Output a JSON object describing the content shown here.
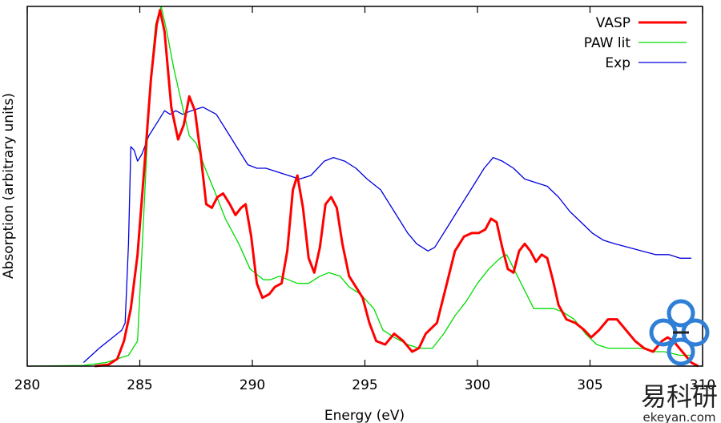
{
  "chart_data": {
    "type": "line",
    "title": "",
    "xlabel": "Energy (eV)",
    "ylabel": "Absorption (arbitrary units)",
    "xlim": [
      280,
      310
    ],
    "ylim": [
      0,
      1.0
    ],
    "x_ticks": [
      280,
      285,
      290,
      295,
      300,
      305,
      310
    ],
    "y_ticks_shown": false,
    "grid": false,
    "legend_position": "top-right",
    "series": [
      {
        "name": "VASP",
        "color": "#ff0000",
        "width": "thick",
        "points": [
          [
            283.0,
            0.0
          ],
          [
            283.6,
            0.004
          ],
          [
            284.0,
            0.02
          ],
          [
            284.3,
            0.07
          ],
          [
            284.6,
            0.16
          ],
          [
            284.9,
            0.31
          ],
          [
            285.2,
            0.55
          ],
          [
            285.5,
            0.8
          ],
          [
            285.75,
            0.95
          ],
          [
            285.9,
            0.99
          ],
          [
            286.1,
            0.93
          ],
          [
            286.4,
            0.72
          ],
          [
            286.7,
            0.63
          ],
          [
            286.95,
            0.67
          ],
          [
            287.2,
            0.75
          ],
          [
            287.45,
            0.71
          ],
          [
            287.7,
            0.59
          ],
          [
            287.95,
            0.45
          ],
          [
            288.2,
            0.44
          ],
          [
            288.45,
            0.47
          ],
          [
            288.7,
            0.48
          ],
          [
            289.0,
            0.45
          ],
          [
            289.25,
            0.42
          ],
          [
            289.5,
            0.44
          ],
          [
            289.7,
            0.45
          ],
          [
            289.95,
            0.36
          ],
          [
            290.2,
            0.23
          ],
          [
            290.45,
            0.19
          ],
          [
            290.75,
            0.2
          ],
          [
            291.0,
            0.22
          ],
          [
            291.3,
            0.23
          ],
          [
            291.55,
            0.32
          ],
          [
            291.8,
            0.49
          ],
          [
            292.0,
            0.53
          ],
          [
            292.25,
            0.44
          ],
          [
            292.5,
            0.3
          ],
          [
            292.75,
            0.26
          ],
          [
            293.0,
            0.33
          ],
          [
            293.25,
            0.45
          ],
          [
            293.5,
            0.47
          ],
          [
            293.75,
            0.44
          ],
          [
            294.0,
            0.34
          ],
          [
            294.3,
            0.25
          ],
          [
            294.6,
            0.22
          ],
          [
            294.9,
            0.19
          ],
          [
            295.2,
            0.12
          ],
          [
            295.5,
            0.07
          ],
          [
            295.9,
            0.06
          ],
          [
            296.3,
            0.09
          ],
          [
            296.7,
            0.07
          ],
          [
            297.1,
            0.04
          ],
          [
            297.4,
            0.05
          ],
          [
            297.7,
            0.09
          ],
          [
            298.2,
            0.12
          ],
          [
            298.6,
            0.22
          ],
          [
            299.0,
            0.32
          ],
          [
            299.4,
            0.36
          ],
          [
            299.75,
            0.37
          ],
          [
            300.05,
            0.37
          ],
          [
            300.35,
            0.38
          ],
          [
            300.6,
            0.41
          ],
          [
            300.85,
            0.4
          ],
          [
            301.1,
            0.33
          ],
          [
            301.35,
            0.27
          ],
          [
            301.6,
            0.26
          ],
          [
            301.85,
            0.32
          ],
          [
            302.1,
            0.34
          ],
          [
            302.35,
            0.32
          ],
          [
            302.6,
            0.29
          ],
          [
            302.85,
            0.31
          ],
          [
            303.1,
            0.3
          ],
          [
            303.35,
            0.24
          ],
          [
            303.6,
            0.17
          ],
          [
            303.95,
            0.13
          ],
          [
            304.35,
            0.12
          ],
          [
            304.75,
            0.1
          ],
          [
            305.05,
            0.08
          ],
          [
            305.4,
            0.1
          ],
          [
            305.8,
            0.13
          ],
          [
            306.2,
            0.13
          ],
          [
            306.6,
            0.1
          ],
          [
            307.0,
            0.07
          ],
          [
            307.4,
            0.05
          ],
          [
            307.8,
            0.04
          ],
          [
            308.2,
            0.07
          ],
          [
            308.45,
            0.08
          ],
          [
            308.7,
            0.07
          ],
          [
            309.1,
            0.04
          ],
          [
            309.5,
            0.01
          ],
          [
            309.8,
            0.0
          ]
        ]
      },
      {
        "name": "PAW lit",
        "color": "#00dd00",
        "width": "thin",
        "points": [
          [
            280.0,
            0.0
          ],
          [
            282.5,
            0.002
          ],
          [
            283.5,
            0.01
          ],
          [
            284.5,
            0.03
          ],
          [
            284.9,
            0.07
          ],
          [
            285.2,
            0.45
          ],
          [
            285.45,
            0.78
          ],
          [
            285.7,
            0.95
          ],
          [
            285.95,
            1.0
          ],
          [
            286.2,
            0.93
          ],
          [
            286.5,
            0.83
          ],
          [
            286.9,
            0.72
          ],
          [
            287.2,
            0.64
          ],
          [
            287.5,
            0.62
          ],
          [
            287.9,
            0.55
          ],
          [
            288.3,
            0.49
          ],
          [
            288.8,
            0.41
          ],
          [
            289.4,
            0.34
          ],
          [
            289.9,
            0.27
          ],
          [
            290.5,
            0.24
          ],
          [
            290.8,
            0.24
          ],
          [
            291.2,
            0.25
          ],
          [
            291.6,
            0.24
          ],
          [
            292.0,
            0.23
          ],
          [
            292.5,
            0.23
          ],
          [
            293.0,
            0.25
          ],
          [
            293.4,
            0.26
          ],
          [
            293.9,
            0.25
          ],
          [
            294.3,
            0.22
          ],
          [
            294.8,
            0.2
          ],
          [
            295.4,
            0.16
          ],
          [
            295.8,
            0.1
          ],
          [
            296.3,
            0.08
          ],
          [
            296.9,
            0.06
          ],
          [
            297.4,
            0.05
          ],
          [
            298.0,
            0.05
          ],
          [
            298.5,
            0.09
          ],
          [
            299.0,
            0.14
          ],
          [
            299.5,
            0.18
          ],
          [
            300.0,
            0.23
          ],
          [
            300.5,
            0.27
          ],
          [
            301.0,
            0.3
          ],
          [
            301.3,
            0.31
          ],
          [
            301.7,
            0.26
          ],
          [
            302.1,
            0.21
          ],
          [
            302.5,
            0.16
          ],
          [
            303.0,
            0.16
          ],
          [
            303.4,
            0.16
          ],
          [
            303.8,
            0.15
          ],
          [
            304.3,
            0.13
          ],
          [
            304.8,
            0.09
          ],
          [
            305.3,
            0.06
          ],
          [
            305.8,
            0.05
          ],
          [
            306.3,
            0.05
          ],
          [
            306.8,
            0.05
          ],
          [
            307.3,
            0.05
          ],
          [
            307.8,
            0.04
          ],
          [
            308.3,
            0.04
          ],
          [
            309.0,
            0.03
          ],
          [
            309.5,
            0.03
          ]
        ]
      },
      {
        "name": "Exp",
        "color": "#0000dd",
        "width": "thin",
        "points": [
          [
            282.5,
            0.01
          ],
          [
            283.2,
            0.05
          ],
          [
            283.8,
            0.08
          ],
          [
            284.2,
            0.1
          ],
          [
            284.35,
            0.12
          ],
          [
            284.5,
            0.34
          ],
          [
            284.6,
            0.61
          ],
          [
            284.75,
            0.6
          ],
          [
            284.9,
            0.57
          ],
          [
            285.1,
            0.59
          ],
          [
            285.4,
            0.64
          ],
          [
            285.8,
            0.68
          ],
          [
            286.1,
            0.71
          ],
          [
            286.35,
            0.7
          ],
          [
            286.6,
            0.71
          ],
          [
            286.9,
            0.7
          ],
          [
            287.3,
            0.71
          ],
          [
            287.8,
            0.72
          ],
          [
            288.4,
            0.7
          ],
          [
            288.9,
            0.65
          ],
          [
            289.4,
            0.6
          ],
          [
            289.8,
            0.56
          ],
          [
            290.2,
            0.55
          ],
          [
            290.6,
            0.55
          ],
          [
            291.1,
            0.54
          ],
          [
            291.6,
            0.53
          ],
          [
            292.1,
            0.52
          ],
          [
            292.6,
            0.53
          ],
          [
            293.2,
            0.57
          ],
          [
            293.6,
            0.58
          ],
          [
            294.1,
            0.57
          ],
          [
            294.6,
            0.55
          ],
          [
            295.1,
            0.52
          ],
          [
            295.7,
            0.49
          ],
          [
            296.3,
            0.43
          ],
          [
            296.9,
            0.37
          ],
          [
            297.3,
            0.34
          ],
          [
            297.8,
            0.32
          ],
          [
            298.1,
            0.33
          ],
          [
            298.6,
            0.38
          ],
          [
            299.2,
            0.44
          ],
          [
            299.8,
            0.5
          ],
          [
            300.3,
            0.55
          ],
          [
            300.7,
            0.58
          ],
          [
            301.1,
            0.57
          ],
          [
            301.6,
            0.55
          ],
          [
            302.1,
            0.52
          ],
          [
            302.6,
            0.51
          ],
          [
            303.1,
            0.5
          ],
          [
            303.6,
            0.47
          ],
          [
            304.1,
            0.43
          ],
          [
            304.6,
            0.4
          ],
          [
            305.1,
            0.37
          ],
          [
            305.6,
            0.35
          ],
          [
            306.1,
            0.34
          ],
          [
            306.7,
            0.33
          ],
          [
            307.3,
            0.32
          ],
          [
            307.9,
            0.31
          ],
          [
            308.5,
            0.31
          ],
          [
            309.0,
            0.3
          ],
          [
            309.5,
            0.3
          ]
        ]
      }
    ]
  },
  "watermark": {
    "brand_cn": "易科研",
    "brand_url": "ekeyan.com",
    "logo_color": "#2f7fd6"
  }
}
